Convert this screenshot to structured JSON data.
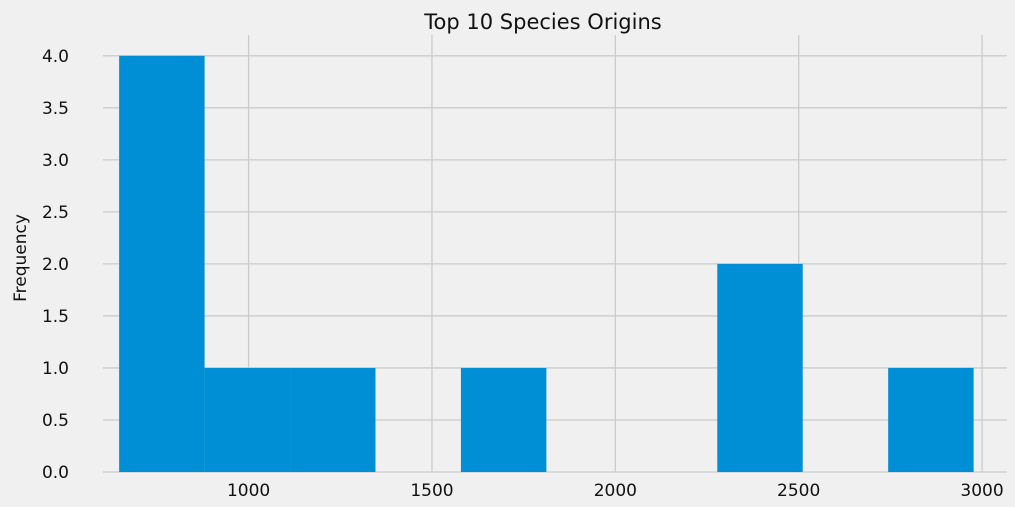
{
  "chart_data": {
    "type": "bar",
    "title": "Top 10 Species Origins",
    "xlabel": "",
    "ylabel": "Frequency",
    "bins": [
      {
        "start": 647,
        "end": 880,
        "count": 4
      },
      {
        "start": 880,
        "end": 1113,
        "count": 1
      },
      {
        "start": 1113,
        "end": 1346,
        "count": 1
      },
      {
        "start": 1346,
        "end": 1579,
        "count": 0
      },
      {
        "start": 1579,
        "end": 1812,
        "count": 1
      },
      {
        "start": 1812,
        "end": 2045,
        "count": 0
      },
      {
        "start": 2045,
        "end": 2278,
        "count": 0
      },
      {
        "start": 2278,
        "end": 2511,
        "count": 2
      },
      {
        "start": 2511,
        "end": 2744,
        "count": 0
      },
      {
        "start": 2744,
        "end": 2977,
        "count": 1
      }
    ],
    "xlim": [
      603,
      3068
    ],
    "ylim": [
      0,
      4.2
    ],
    "xticks": [
      1000,
      1500,
      2000,
      2500,
      3000
    ],
    "yticks": [
      0.0,
      0.5,
      1.0,
      1.5,
      2.0,
      2.5,
      3.0,
      3.5,
      4.0
    ],
    "ytick_labels": [
      "0.0",
      "0.5",
      "1.0",
      "1.5",
      "2.0",
      "2.5",
      "3.0",
      "3.5",
      "4.0"
    ],
    "grid": true,
    "bar_color": "#008fd5",
    "grid_color": "#cbcbcb",
    "background_color": "#f0f0f0"
  }
}
